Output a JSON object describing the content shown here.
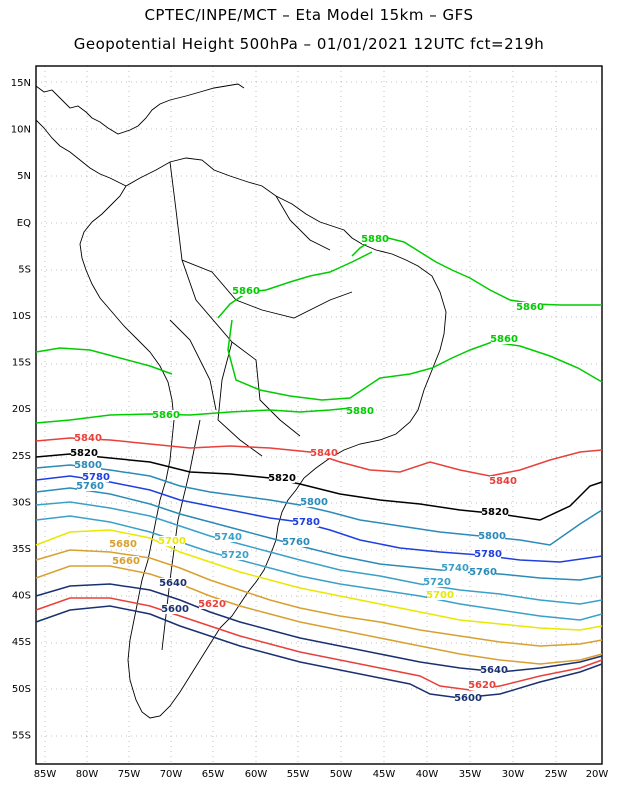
{
  "title_line1": "CPTEC/INPE/MCT –  Eta Model 15km – GFS",
  "title_line2": "Geopotential Height 500hPa – 01/01/2021 12UTC fct=219h",
  "x_ticks": [
    "85W",
    "80W",
    "75W",
    "70W",
    "65W",
    "60W",
    "55W",
    "50W",
    "45W",
    "40W",
    "35W",
    "30W",
    "25W",
    "20W"
  ],
  "y_ticks": [
    "15N",
    "10N",
    "5N",
    "EQ",
    "5S",
    "10S",
    "15S",
    "20S",
    "25S",
    "30S",
    "35S",
    "40S",
    "45S",
    "50S",
    "55S"
  ],
  "contours": [
    {
      "level": "5880",
      "color": "#00cc00"
    },
    {
      "level": "5860",
      "color": "#00cc00"
    },
    {
      "level": "5840",
      "color": "#e8403a"
    },
    {
      "level": "5820",
      "color": "#000000"
    },
    {
      "level": "5800",
      "color": "#2a8ab8"
    },
    {
      "level": "5780",
      "color": "#1f3fe0"
    },
    {
      "level": "5760",
      "color": "#2a8ab8"
    },
    {
      "level": "5740",
      "color": "#3aa0c8"
    },
    {
      "level": "5720",
      "color": "#3aa0c8"
    },
    {
      "level": "5700",
      "color": "#e8e800"
    },
    {
      "level": "5680",
      "color": "#d8a030"
    },
    {
      "level": "5660",
      "color": "#d8a030"
    },
    {
      "level": "5640",
      "color": "#1a3070"
    },
    {
      "level": "5620",
      "color": "#e8403a"
    },
    {
      "level": "5600",
      "color": "#1a3070"
    }
  ]
}
